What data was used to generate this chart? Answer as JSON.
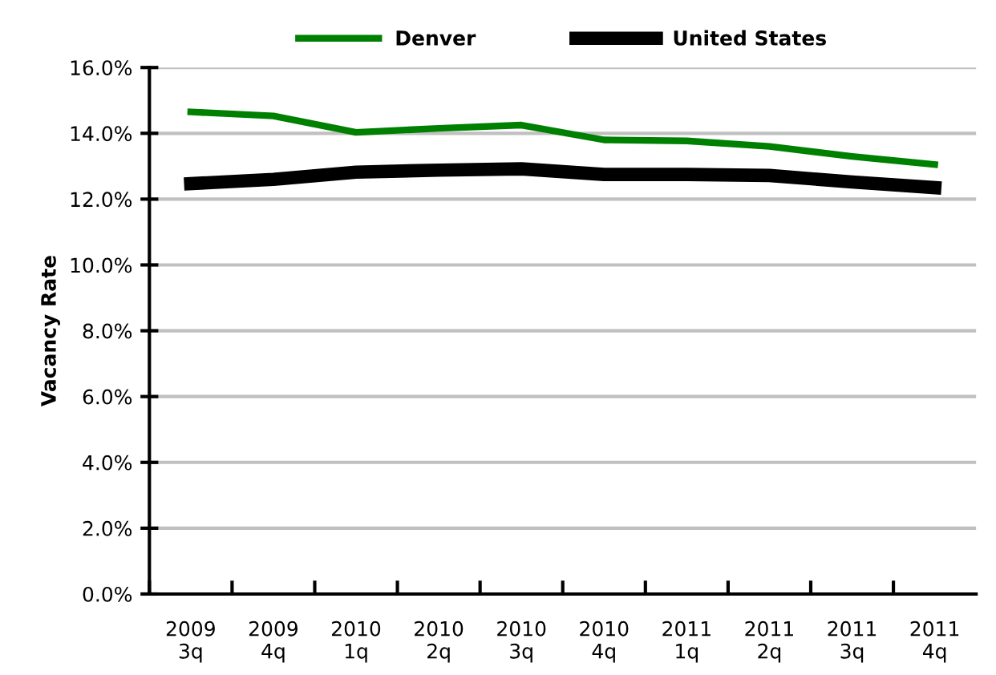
{
  "chart_data": {
    "type": "line",
    "ylabel": "Vacancy Rate",
    "categories": [
      "2009\n3q",
      "2009\n4q",
      "2010\n1q",
      "2010\n2q",
      "2010\n3q",
      "2010\n4q",
      "2011\n1q",
      "2011\n2q",
      "2011\n3q",
      "2011\n4q"
    ],
    "series": [
      {
        "name": "Denver",
        "color": "#008000",
        "values": [
          14.65,
          14.53,
          14.03,
          14.15,
          14.25,
          13.8,
          13.77,
          13.6,
          13.3,
          13.05
        ]
      },
      {
        "name": "United States",
        "color": "#000000",
        "values": [
          12.47,
          12.6,
          12.82,
          12.88,
          12.92,
          12.75,
          12.75,
          12.72,
          12.52,
          12.35
        ]
      }
    ],
    "ylim": [
      0,
      16
    ],
    "yticks": [
      {
        "value": 0,
        "label": "0.0%"
      },
      {
        "value": 2,
        "label": "2.0%"
      },
      {
        "value": 4,
        "label": "4.0%"
      },
      {
        "value": 6,
        "label": "6.0%"
      },
      {
        "value": 8,
        "label": "8.0%"
      },
      {
        "value": 10,
        "label": "10.0%"
      },
      {
        "value": 12,
        "label": "12.0%"
      },
      {
        "value": 14,
        "label": "14.0%"
      },
      {
        "value": 16,
        "label": "16.0%"
      }
    ],
    "grid": "y",
    "legend": "top",
    "marker": "none",
    "line_style": "solid"
  }
}
